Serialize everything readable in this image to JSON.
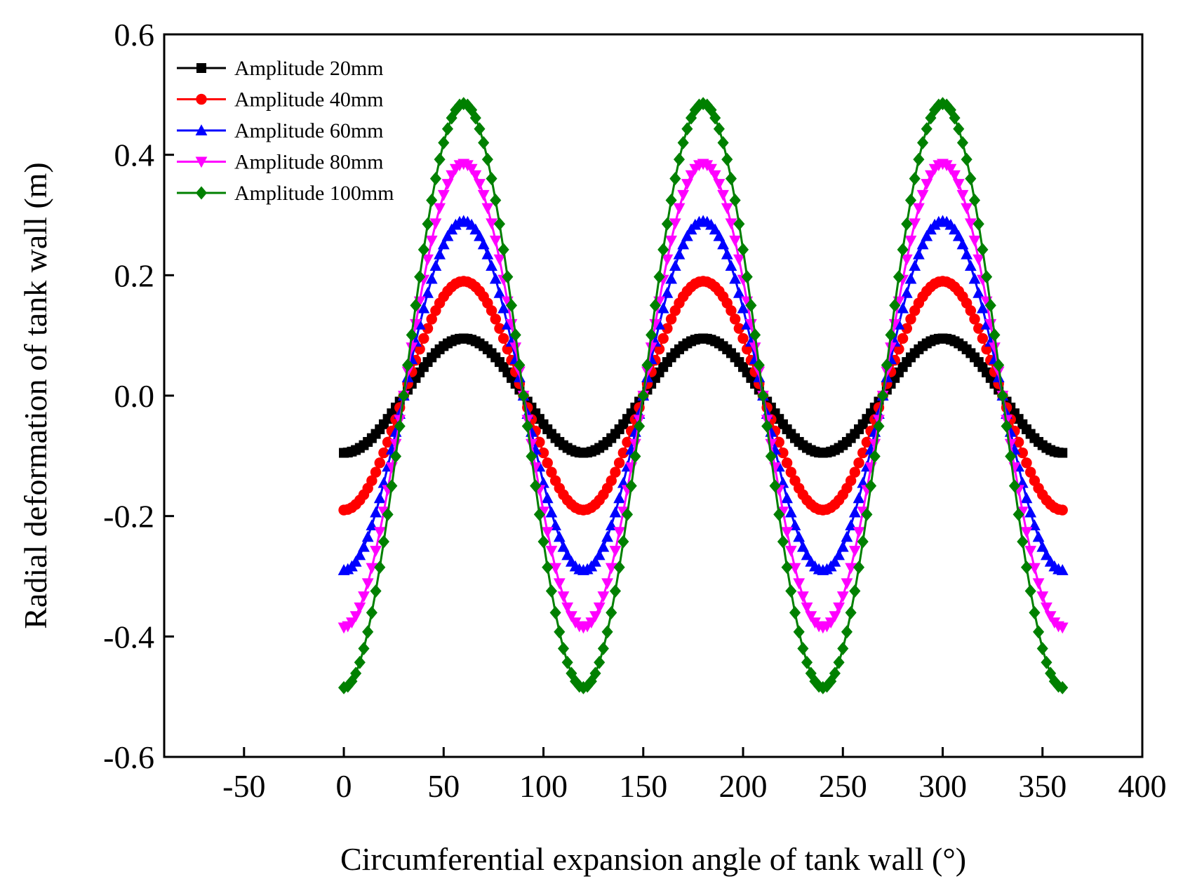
{
  "chart_data": {
    "type": "line",
    "title": "",
    "xlabel": "Circumferential expansion angle of tank wall (°)",
    "ylabel": "Radial deformation of tank wall (m)",
    "xlim": [
      -90,
      400
    ],
    "ylim": [
      -0.6,
      0.6
    ],
    "x_ticks": [
      -50,
      0,
      50,
      100,
      150,
      200,
      250,
      300,
      350,
      400
    ],
    "x_tick_labels": [
      "-50",
      "0",
      "50",
      "100",
      "150",
      "200",
      "250",
      "300",
      "350",
      "400"
    ],
    "y_ticks": [
      -0.6,
      -0.4,
      -0.2,
      0.0,
      0.2,
      0.4,
      0.6
    ],
    "y_tick_labels": [
      "-0.6",
      "-0.4",
      "-0.2",
      "0.0",
      "0.2",
      "0.4",
      "0.6"
    ],
    "grid": false,
    "legend_position": "top-left",
    "curve_model": "y = -A * cos(3 * x in degrees)",
    "x_range": [
      0,
      360
    ],
    "x_step": 2,
    "series": [
      {
        "name": "Amplitude 20mm",
        "amplitude": 0.095,
        "color": "#000000",
        "marker": "square"
      },
      {
        "name": "Amplitude 40mm",
        "amplitude": 0.19,
        "color": "#ff0000",
        "marker": "circle"
      },
      {
        "name": "Amplitude 60mm",
        "amplitude": 0.29,
        "color": "#0000ff",
        "marker": "triangle-up"
      },
      {
        "name": "Amplitude 80mm",
        "amplitude": 0.385,
        "color": "#ff00ff",
        "marker": "triangle-down"
      },
      {
        "name": "Amplitude 100mm",
        "amplitude": 0.485,
        "color": "#008000",
        "marker": "diamond"
      }
    ]
  }
}
